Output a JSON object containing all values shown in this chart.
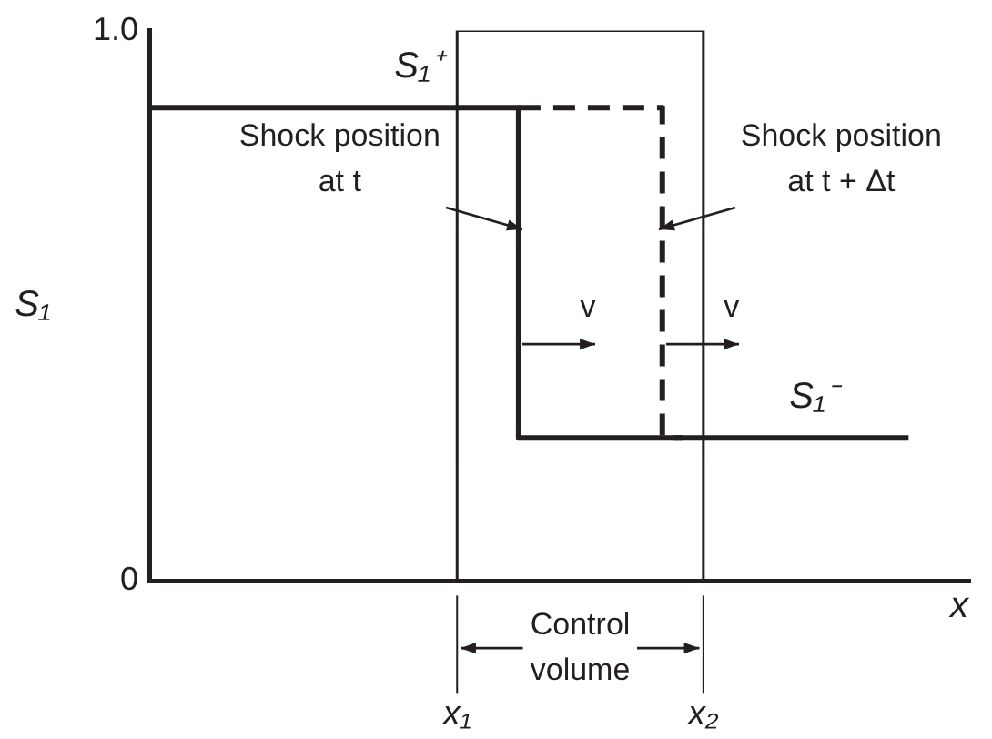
{
  "chart_data": {
    "type": "step",
    "xlabel": "x",
    "ylabel": "S₁",
    "ylim": [
      0,
      1
    ],
    "categories": [
      null,
      null,
      null,
      null,
      null,
      null,
      null,
      null,
      null,
      null,
      null,
      null,
      null,
      null,
      null,
      "x₁",
      null,
      null,
      null,
      null,
      null,
      null,
      null,
      null,
      null,
      null,
      null,
      "x₂",
      null,
      null,
      null,
      null,
      null,
      null,
      null,
      null,
      null,
      null,
      null,
      null,
      null
    ],
    "yticks": [
      {
        "value": 0,
        "label": "0"
      },
      {
        "value": 1,
        "label": "1.0"
      }
    ],
    "series": [
      {
        "color": "#231f20",
        "line_style": "solid",
        "values": [
          0.86,
          0.86,
          0.86,
          0.86,
          0.86,
          0.86,
          0.86,
          0.86,
          0.86,
          0.86,
          0.86,
          0.86,
          0.86,
          0.86,
          0.86,
          0.86,
          0.86,
          0.86,
          0.86,
          0.26,
          0.26,
          0.26,
          0.26,
          0.26,
          0.26,
          0.26,
          0.26,
          0.26,
          0.26,
          0.26,
          0.26,
          0.26,
          0.26,
          0.26,
          0.26,
          0.26,
          0.26,
          0.26,
          null,
          null,
          null
        ]
      },
      {
        "color": "#231f20",
        "line_style": "dashed",
        "values": [
          null,
          null,
          null,
          null,
          null,
          null,
          null,
          null,
          null,
          null,
          null,
          null,
          null,
          null,
          null,
          null,
          null,
          null,
          0.86,
          0.86,
          0.86,
          0.86,
          0.86,
          0.86,
          0.86,
          0.86,
          0.26,
          null,
          null,
          null,
          null,
          null,
          null,
          null,
          null,
          null,
          null,
          null,
          null,
          null,
          null
        ]
      },
      {
        "color": "#231f20",
        "line_style": "solid",
        "values": [
          null,
          null,
          null,
          null,
          null,
          null,
          null,
          null,
          null,
          null,
          null,
          null,
          null,
          null,
          null,
          0,
          1,
          1,
          1,
          1,
          1,
          1,
          1,
          1,
          1,
          1,
          1,
          1,
          0,
          null,
          null,
          null,
          null,
          null,
          null,
          null,
          null,
          null,
          null,
          null,
          null
        ]
      }
    ],
    "annotations": [
      "S₁⁺",
      "S₁⁻",
      "Shock position at t",
      "Shock position at t + Δt",
      {
        "text": "v",
        "y": 0.43
      },
      {
        "text": "v",
        "y": 0.43
      },
      "Control volume"
    ],
    "grid": false,
    "legend": false,
    "marker": "none"
  }
}
